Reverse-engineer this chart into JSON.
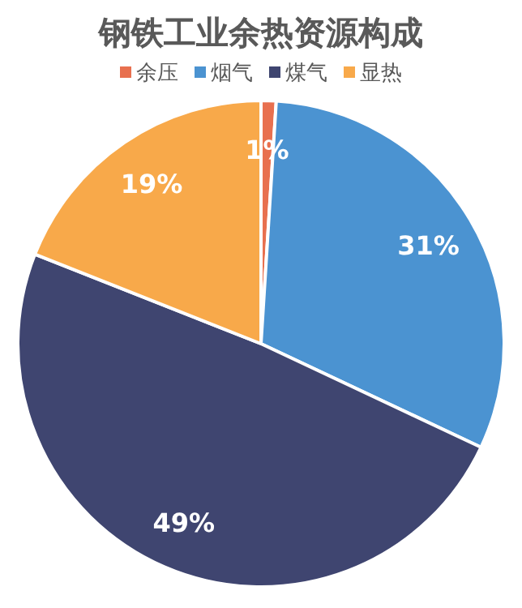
{
  "chart_data": {
    "type": "pie",
    "title": "钢铁工业余热资源构成",
    "categories": [
      "余压",
      "烟气",
      "煤气",
      "显热"
    ],
    "values": [
      1,
      31,
      49,
      19
    ],
    "colors": [
      "#e8704f",
      "#4b93d1",
      "#3f4570",
      "#f8a94a"
    ],
    "value_labels": [
      "1%",
      "31%",
      "49%",
      "19%"
    ],
    "legend": "top"
  }
}
